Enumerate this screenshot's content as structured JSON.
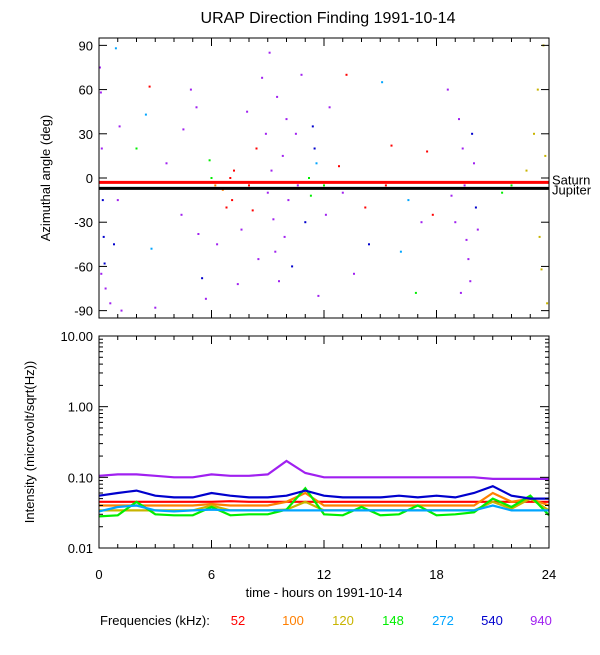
{
  "chart_data": [
    {
      "type": "scatter",
      "title": "URAP Direction Finding  1991-10-14",
      "ylabel": "Azimuthal angle (deg)",
      "xlim": [
        0,
        24
      ],
      "ylim": [
        -95,
        95
      ],
      "yticks": [
        {
          "v": 90,
          "label": "90"
        },
        {
          "v": 60,
          "label": "60"
        },
        {
          "v": 30,
          "label": "30"
        },
        {
          "v": 0,
          "label": "0"
        },
        {
          "v": -30,
          "label": "-30"
        },
        {
          "v": -60,
          "label": "-60"
        },
        {
          "v": -90,
          "label": "-90"
        }
      ],
      "reference_lines": [
        {
          "name": "Saturn",
          "y": -3,
          "color": "#ff0000"
        },
        {
          "name": "Jupiter",
          "y": -7,
          "color": "#000000"
        }
      ],
      "points": [
        {
          "x": 0.05,
          "y": 75,
          "c": "#a020f0"
        },
        {
          "x": 0.1,
          "y": 58,
          "c": "#a020f0"
        },
        {
          "x": 0.15,
          "y": 20,
          "c": "#a020f0"
        },
        {
          "x": 0.2,
          "y": -15,
          "c": "#0000cd"
        },
        {
          "x": 0.25,
          "y": -40,
          "c": "#0000cd"
        },
        {
          "x": 0.3,
          "y": -58,
          "c": "#0000cd"
        },
        {
          "x": 0.12,
          "y": -65,
          "c": "#a020f0"
        },
        {
          "x": 0.35,
          "y": -75,
          "c": "#a020f0"
        },
        {
          "x": 0.6,
          "y": -85,
          "c": "#a020f0"
        },
        {
          "x": 0.9,
          "y": 88,
          "c": "#00a5ff"
        },
        {
          "x": 1.1,
          "y": 35,
          "c": "#a020f0"
        },
        {
          "x": 1.0,
          "y": -15,
          "c": "#a020f0"
        },
        {
          "x": 0.8,
          "y": -45,
          "c": "#0000cd"
        },
        {
          "x": 1.2,
          "y": -90,
          "c": "#a020f0"
        },
        {
          "x": 2.7,
          "y": 62,
          "c": "#ff0000"
        },
        {
          "x": 2.5,
          "y": 43,
          "c": "#00a5ff"
        },
        {
          "x": 2.0,
          "y": 20,
          "c": "#00ee00"
        },
        {
          "x": 2.8,
          "y": -48,
          "c": "#00a5ff"
        },
        {
          "x": 3.6,
          "y": 10,
          "c": "#a020f0"
        },
        {
          "x": 3.0,
          "y": -88,
          "c": "#a020f0"
        },
        {
          "x": 4.5,
          "y": 33,
          "c": "#a020f0"
        },
        {
          "x": 4.4,
          "y": -25,
          "c": "#a020f0"
        },
        {
          "x": 4.9,
          "y": 60,
          "c": "#a020f0"
        },
        {
          "x": 5.2,
          "y": 48,
          "c": "#a020f0"
        },
        {
          "x": 5.3,
          "y": -38,
          "c": "#a020f0"
        },
        {
          "x": 5.5,
          "y": -68,
          "c": "#0000cd"
        },
        {
          "x": 5.7,
          "y": -82,
          "c": "#a020f0"
        },
        {
          "x": 5.9,
          "y": 12,
          "c": "#00ee00"
        },
        {
          "x": 6.0,
          "y": 0,
          "c": "#00ee00"
        },
        {
          "x": 6.2,
          "y": -5,
          "c": "#ff7f00"
        },
        {
          "x": 6.3,
          "y": -45,
          "c": "#a020f0"
        },
        {
          "x": 6.6,
          "y": -8,
          "c": "#ff7f00"
        },
        {
          "x": 6.8,
          "y": -20,
          "c": "#ff0000"
        },
        {
          "x": 7.0,
          "y": 0,
          "c": "#ff0000"
        },
        {
          "x": 7.1,
          "y": -15,
          "c": "#ff0000"
        },
        {
          "x": 7.2,
          "y": 5,
          "c": "#ff0000"
        },
        {
          "x": 7.4,
          "y": -72,
          "c": "#a020f0"
        },
        {
          "x": 7.6,
          "y": -35,
          "c": "#a020f0"
        },
        {
          "x": 7.9,
          "y": 45,
          "c": "#a020f0"
        },
        {
          "x": 8.0,
          "y": -5,
          "c": "#ff0000"
        },
        {
          "x": 8.2,
          "y": -22,
          "c": "#ff0000"
        },
        {
          "x": 8.4,
          "y": 20,
          "c": "#ff0000"
        },
        {
          "x": 8.5,
          "y": -55,
          "c": "#a020f0"
        },
        {
          "x": 8.7,
          "y": 68,
          "c": "#a020f0"
        },
        {
          "x": 8.9,
          "y": 30,
          "c": "#a020f0"
        },
        {
          "x": 9.0,
          "y": -10,
          "c": "#a020f0"
        },
        {
          "x": 9.1,
          "y": 85,
          "c": "#a020f0"
        },
        {
          "x": 9.2,
          "y": 5,
          "c": "#a020f0"
        },
        {
          "x": 9.3,
          "y": -28,
          "c": "#a020f0"
        },
        {
          "x": 9.4,
          "y": -50,
          "c": "#a020f0"
        },
        {
          "x": 9.5,
          "y": 55,
          "c": "#a020f0"
        },
        {
          "x": 9.6,
          "y": -70,
          "c": "#a020f0"
        },
        {
          "x": 9.8,
          "y": 15,
          "c": "#a020f0"
        },
        {
          "x": 9.9,
          "y": -40,
          "c": "#a020f0"
        },
        {
          "x": 10.0,
          "y": 40,
          "c": "#a020f0"
        },
        {
          "x": 10.1,
          "y": -15,
          "c": "#a020f0"
        },
        {
          "x": 10.3,
          "y": -60,
          "c": "#0000cd"
        },
        {
          "x": 10.5,
          "y": 30,
          "c": "#a020f0"
        },
        {
          "x": 10.6,
          "y": -5,
          "c": "#a020f0"
        },
        {
          "x": 10.8,
          "y": 70,
          "c": "#a020f0"
        },
        {
          "x": 11.0,
          "y": -30,
          "c": "#0000cd"
        },
        {
          "x": 11.2,
          "y": 0,
          "c": "#00ee00"
        },
        {
          "x": 11.3,
          "y": -12,
          "c": "#00ee00"
        },
        {
          "x": 11.4,
          "y": 35,
          "c": "#0000cd"
        },
        {
          "x": 11.5,
          "y": 20,
          "c": "#0000cd"
        },
        {
          "x": 11.6,
          "y": 10,
          "c": "#00a5ff"
        },
        {
          "x": 11.7,
          "y": -80,
          "c": "#a020f0"
        },
        {
          "x": 12.0,
          "y": -5,
          "c": "#00ee00"
        },
        {
          "x": 12.1,
          "y": -25,
          "c": "#a020f0"
        },
        {
          "x": 12.3,
          "y": 48,
          "c": "#a020f0"
        },
        {
          "x": 12.8,
          "y": 8,
          "c": "#ff0000"
        },
        {
          "x": 13.0,
          "y": -10,
          "c": "#a020f0"
        },
        {
          "x": 13.2,
          "y": 70,
          "c": "#ff0000"
        },
        {
          "x": 13.6,
          "y": -65,
          "c": "#a020f0"
        },
        {
          "x": 14.2,
          "y": -20,
          "c": "#ff0000"
        },
        {
          "x": 14.4,
          "y": -45,
          "c": "#0000cd"
        },
        {
          "x": 15.1,
          "y": 65,
          "c": "#00a5ff"
        },
        {
          "x": 15.3,
          "y": -5,
          "c": "#ff0000"
        },
        {
          "x": 15.6,
          "y": 22,
          "c": "#ff0000"
        },
        {
          "x": 16.1,
          "y": -50,
          "c": "#00a5ff"
        },
        {
          "x": 16.5,
          "y": -15,
          "c": "#00a5ff"
        },
        {
          "x": 16.9,
          "y": -78,
          "c": "#00ee00"
        },
        {
          "x": 17.2,
          "y": -30,
          "c": "#a020f0"
        },
        {
          "x": 17.5,
          "y": 18,
          "c": "#ff0000"
        },
        {
          "x": 17.8,
          "y": -25,
          "c": "#ff0000"
        },
        {
          "x": 18.6,
          "y": 60,
          "c": "#a020f0"
        },
        {
          "x": 18.8,
          "y": -12,
          "c": "#a020f0"
        },
        {
          "x": 19.0,
          "y": -30,
          "c": "#a020f0"
        },
        {
          "x": 19.2,
          "y": 40,
          "c": "#a020f0"
        },
        {
          "x": 19.4,
          "y": 20,
          "c": "#a020f0"
        },
        {
          "x": 19.5,
          "y": -5,
          "c": "#a020f0"
        },
        {
          "x": 19.6,
          "y": -42,
          "c": "#a020f0"
        },
        {
          "x": 19.7,
          "y": -55,
          "c": "#a020f0"
        },
        {
          "x": 19.8,
          "y": -70,
          "c": "#a020f0"
        },
        {
          "x": 19.9,
          "y": 30,
          "c": "#0000cd"
        },
        {
          "x": 20.0,
          "y": 10,
          "c": "#a020f0"
        },
        {
          "x": 20.1,
          "y": -20,
          "c": "#0000cd"
        },
        {
          "x": 20.2,
          "y": -35,
          "c": "#a020f0"
        },
        {
          "x": 19.3,
          "y": -78,
          "c": "#a020f0"
        },
        {
          "x": 21.5,
          "y": -10,
          "c": "#00ee00"
        },
        {
          "x": 22.0,
          "y": -5,
          "c": "#00ee00"
        },
        {
          "x": 22.8,
          "y": 5,
          "c": "#c8b400"
        },
        {
          "x": 23.2,
          "y": 30,
          "c": "#c8b400"
        },
        {
          "x": 23.4,
          "y": 60,
          "c": "#c8b400"
        },
        {
          "x": 23.5,
          "y": -40,
          "c": "#c8b400"
        },
        {
          "x": 23.6,
          "y": -62,
          "c": "#c8b400"
        },
        {
          "x": 23.7,
          "y": 90,
          "c": "#c8b400"
        },
        {
          "x": 23.8,
          "y": 15,
          "c": "#c8b400"
        },
        {
          "x": 23.9,
          "y": -85,
          "c": "#c8b400"
        }
      ]
    },
    {
      "type": "line",
      "ylabel": "Intensity (microvolt/sqrt(Hz))",
      "xlabel": "time - hours on 1991-10-14",
      "xlim": [
        0,
        24
      ],
      "ylim": [
        0.01,
        10
      ],
      "log_y": true,
      "xticks": [
        0,
        6,
        12,
        18,
        24
      ],
      "xtick_labels": [
        "0",
        "6",
        "12",
        "18",
        "24"
      ],
      "yticks": [
        {
          "v": 10,
          "label": "10.00"
        },
        {
          "v": 1,
          "label": "1.00"
        },
        {
          "v": 0.1,
          "label": "0.10"
        },
        {
          "v": 0.01,
          "label": "0.01"
        }
      ],
      "x": [
        0,
        1,
        2,
        3,
        4,
        5,
        6,
        7,
        8,
        9,
        10,
        11,
        12,
        13,
        14,
        15,
        16,
        17,
        18,
        19,
        20,
        21,
        22,
        23,
        24
      ],
      "series": [
        {
          "freq": "52",
          "color": "#ff0000",
          "values": [
            0.045,
            0.045,
            0.045,
            0.045,
            0.045,
            0.045,
            0.045,
            0.046,
            0.045,
            0.045,
            0.045,
            0.045,
            0.045,
            0.045,
            0.045,
            0.045,
            0.045,
            0.045,
            0.045,
            0.045,
            0.045,
            0.045,
            0.045,
            0.045,
            0.045
          ]
        },
        {
          "freq": "100",
          "color": "#ff7f00",
          "values": [
            0.04,
            0.04,
            0.04,
            0.04,
            0.04,
            0.04,
            0.042,
            0.04,
            0.04,
            0.04,
            0.045,
            0.06,
            0.04,
            0.04,
            0.04,
            0.04,
            0.04,
            0.04,
            0.04,
            0.04,
            0.04,
            0.06,
            0.045,
            0.05,
            0.04
          ]
        },
        {
          "freq": "120",
          "color": "#c8b400",
          "values": [
            0.034,
            0.034,
            0.034,
            0.034,
            0.034,
            0.034,
            0.04,
            0.034,
            0.034,
            0.034,
            0.035,
            0.045,
            0.034,
            0.034,
            0.034,
            0.034,
            0.034,
            0.034,
            0.034,
            0.034,
            0.034,
            0.045,
            0.036,
            0.05,
            0.034
          ]
        },
        {
          "freq": "148",
          "color": "#00ee00",
          "values": [
            0.028,
            0.029,
            0.045,
            0.03,
            0.029,
            0.029,
            0.038,
            0.029,
            0.03,
            0.03,
            0.035,
            0.07,
            0.03,
            0.029,
            0.038,
            0.029,
            0.03,
            0.04,
            0.029,
            0.03,
            0.032,
            0.05,
            0.038,
            0.055,
            0.029
          ]
        },
        {
          "freq": "272",
          "color": "#00a5ff",
          "values": [
            0.033,
            0.038,
            0.04,
            0.034,
            0.033,
            0.034,
            0.035,
            0.034,
            0.034,
            0.034,
            0.034,
            0.034,
            0.034,
            0.034,
            0.034,
            0.034,
            0.034,
            0.034,
            0.034,
            0.034,
            0.034,
            0.04,
            0.034,
            0.034,
            0.034
          ]
        },
        {
          "freq": "540",
          "color": "#0000cd",
          "values": [
            0.055,
            0.06,
            0.065,
            0.055,
            0.052,
            0.052,
            0.06,
            0.055,
            0.052,
            0.052,
            0.055,
            0.065,
            0.055,
            0.052,
            0.052,
            0.052,
            0.055,
            0.052,
            0.055,
            0.052,
            0.06,
            0.075,
            0.055,
            0.05,
            0.05
          ]
        },
        {
          "freq": "940",
          "color": "#a020f0",
          "values": [
            0.105,
            0.11,
            0.11,
            0.105,
            0.1,
            0.1,
            0.11,
            0.105,
            0.105,
            0.11,
            0.17,
            0.115,
            0.1,
            0.1,
            0.1,
            0.1,
            0.1,
            0.1,
            0.1,
            0.1,
            0.1,
            0.095,
            0.095,
            0.095,
            0.095
          ]
        }
      ]
    }
  ],
  "legend": {
    "label": "Frequencies (kHz):",
    "items": [
      {
        "text": "52",
        "color": "#ff0000"
      },
      {
        "text": "100",
        "color": "#ff7f00"
      },
      {
        "text": "120",
        "color": "#c8b400"
      },
      {
        "text": "148",
        "color": "#00ee00"
      },
      {
        "text": "272",
        "color": "#00a5ff"
      },
      {
        "text": "540",
        "color": "#0000cd"
      },
      {
        "text": "940",
        "color": "#a020f0"
      }
    ]
  }
}
